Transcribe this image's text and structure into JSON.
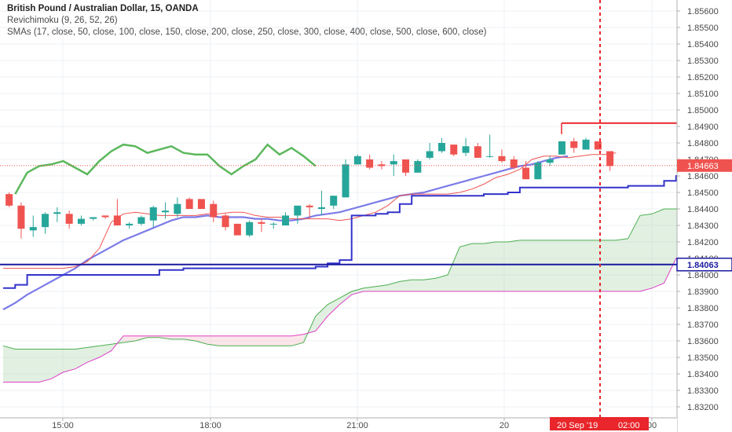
{
  "legend": {
    "title": "British Pound / Australian Dollar, 15, OANDA",
    "ichimoku": "Revichimoku (9, 26, 52, 26)",
    "smas": "SMAs (17, close, 50, close, 100, close, 150, close, 200, close, 250, close, 300, close, 400, close, 500, close, 600, close)"
  },
  "colors": {
    "up": "#26a69a",
    "down": "#ef5350",
    "grid": "#eef0f4",
    "cloud_bull": "#a8d5a8",
    "cloud_bear": "#f4b6c2",
    "lagging": "#5cb85c",
    "kijun": "#3333cc",
    "sma_fast": "#ef5350",
    "sma_slow": "#7b7be8",
    "price_line": "#1a1aa0",
    "marker": "#e8262b"
  },
  "price_badges": {
    "current": "1.84663",
    "line": "1.84063"
  },
  "time_badge": {
    "date": "20 Sep '19",
    "time": "02:00"
  },
  "chart_data": {
    "type": "candlestick",
    "symbol": "GBPAUD",
    "interval": "15",
    "y_ticks": [
      "1.85600",
      "1.85500",
      "1.85400",
      "1.85300",
      "1.85200",
      "1.85100",
      "1.85000",
      "1.84900",
      "1.84800",
      "1.84700",
      "1.84600",
      "1.84500",
      "1.84400",
      "1.84300",
      "1.84200",
      "1.84100",
      "1.84000",
      "1.83900",
      "1.83800",
      "1.83700",
      "1.83600",
      "1.83500",
      "1.83400",
      "1.83300",
      "1.83200"
    ],
    "x_ticks": [
      "15:00",
      "18:00",
      "21:00",
      "20",
      "00"
    ],
    "ylim": [
      1.8315,
      1.8565
    ],
    "horizontal_line": 1.84063,
    "target_level": 1.8492,
    "candles": [
      {
        "o": 1.8449,
        "h": 1.845,
        "l": 1.8441,
        "c": 1.8442
      },
      {
        "o": 1.8442,
        "h": 1.8444,
        "l": 1.8422,
        "c": 1.8428
      },
      {
        "o": 1.8427,
        "h": 1.8436,
        "l": 1.8423,
        "c": 1.8429
      },
      {
        "o": 1.8429,
        "h": 1.8438,
        "l": 1.8425,
        "c": 1.8437
      },
      {
        "o": 1.8437,
        "h": 1.8441,
        "l": 1.8432,
        "c": 1.8438
      },
      {
        "o": 1.8437,
        "h": 1.8439,
        "l": 1.8428,
        "c": 1.8431
      },
      {
        "o": 1.8431,
        "h": 1.8436,
        "l": 1.843,
        "c": 1.8434
      },
      {
        "o": 1.8434,
        "h": 1.8435,
        "l": 1.8433,
        "c": 1.8435
      },
      {
        "o": 1.8436,
        "h": 1.8436,
        "l": 1.8434,
        "c": 1.8435
      },
      {
        "o": 1.8436,
        "h": 1.8446,
        "l": 1.843,
        "c": 1.843
      },
      {
        "o": 1.843,
        "h": 1.8432,
        "l": 1.8428,
        "c": 1.8431
      },
      {
        "o": 1.8431,
        "h": 1.8436,
        "l": 1.843,
        "c": 1.8435
      },
      {
        "o": 1.8433,
        "h": 1.8442,
        "l": 1.8429,
        "c": 1.8441
      },
      {
        "o": 1.8438,
        "h": 1.8444,
        "l": 1.8434,
        "c": 1.8439
      },
      {
        "o": 1.8437,
        "h": 1.8447,
        "l": 1.8435,
        "c": 1.8443
      },
      {
        "o": 1.8446,
        "h": 1.8447,
        "l": 1.844,
        "c": 1.844
      },
      {
        "o": 1.8446,
        "h": 1.8446,
        "l": 1.844,
        "c": 1.844
      },
      {
        "o": 1.8443,
        "h": 1.8445,
        "l": 1.8432,
        "c": 1.8435
      },
      {
        "o": 1.8436,
        "h": 1.8437,
        "l": 1.8427,
        "c": 1.8429
      },
      {
        "o": 1.8431,
        "h": 1.8431,
        "l": 1.8424,
        "c": 1.8424
      },
      {
        "o": 1.8424,
        "h": 1.8433,
        "l": 1.8423,
        "c": 1.8432
      },
      {
        "o": 1.8432,
        "h": 1.8434,
        "l": 1.8426,
        "c": 1.8431
      },
      {
        "o": 1.8431,
        "h": 1.8432,
        "l": 1.8428,
        "c": 1.8431
      },
      {
        "o": 1.843,
        "h": 1.8438,
        "l": 1.843,
        "c": 1.8436
      },
      {
        "o": 1.8436,
        "h": 1.8442,
        "l": 1.8431,
        "c": 1.8442
      },
      {
        "o": 1.8442,
        "h": 1.8443,
        "l": 1.8434,
        "c": 1.8441
      },
      {
        "o": 1.844,
        "h": 1.8451,
        "l": 1.8436,
        "c": 1.8441
      },
      {
        "o": 1.8442,
        "h": 1.8448,
        "l": 1.844,
        "c": 1.8448
      },
      {
        "o": 1.8447,
        "h": 1.847,
        "l": 1.8447,
        "c": 1.8467
      },
      {
        "o": 1.8467,
        "h": 1.8473,
        "l": 1.8467,
        "c": 1.8472
      },
      {
        "o": 1.847,
        "h": 1.8473,
        "l": 1.8464,
        "c": 1.8465
      },
      {
        "o": 1.8467,
        "h": 1.8469,
        "l": 1.8464,
        "c": 1.8466
      },
      {
        "o": 1.8467,
        "h": 1.8473,
        "l": 1.846,
        "c": 1.8469
      },
      {
        "o": 1.847,
        "h": 1.847,
        "l": 1.846,
        "c": 1.8462
      },
      {
        "o": 1.8462,
        "h": 1.847,
        "l": 1.8462,
        "c": 1.8469
      },
      {
        "o": 1.8471,
        "h": 1.848,
        "l": 1.847,
        "c": 1.8475
      },
      {
        "o": 1.8475,
        "h": 1.8483,
        "l": 1.8474,
        "c": 1.848
      },
      {
        "o": 1.8479,
        "h": 1.8479,
        "l": 1.8472,
        "c": 1.8473
      },
      {
        "o": 1.8474,
        "h": 1.8483,
        "l": 1.8472,
        "c": 1.8478
      },
      {
        "o": 1.8478,
        "h": 1.848,
        "l": 1.8471,
        "c": 1.8471
      },
      {
        "o": 1.8472,
        "h": 1.8485,
        "l": 1.8471,
        "c": 1.8472
      },
      {
        "o": 1.8472,
        "h": 1.8476,
        "l": 1.8468,
        "c": 1.8469
      },
      {
        "o": 1.847,
        "h": 1.8472,
        "l": 1.8464,
        "c": 1.8465
      },
      {
        "o": 1.8465,
        "h": 1.8469,
        "l": 1.8458,
        "c": 1.8458
      },
      {
        "o": 1.8458,
        "h": 1.8469,
        "l": 1.8458,
        "c": 1.8468
      },
      {
        "o": 1.8468,
        "h": 1.8472,
        "l": 1.8466,
        "c": 1.847
      },
      {
        "o": 1.8473,
        "h": 1.8481,
        "l": 1.8473,
        "c": 1.8481
      },
      {
        "o": 1.8481,
        "h": 1.8483,
        "l": 1.8474,
        "c": 1.8477
      },
      {
        "o": 1.8476,
        "h": 1.8483,
        "l": 1.8476,
        "c": 1.8482
      },
      {
        "o": 1.8481,
        "h": 1.8481,
        "l": 1.8476,
        "c": 1.8476
      },
      {
        "o": 1.8475,
        "h": 1.8475,
        "l": 1.8463,
        "c": 1.8466
      }
    ],
    "lagging_span": [
      1.8449,
      1.8462,
      1.8466,
      1.8467,
      1.8469,
      1.8465,
      1.8461,
      1.8469,
      1.8475,
      1.8479,
      1.8478,
      1.8474,
      1.8476,
      1.8478,
      1.8474,
      1.8473,
      1.8473,
      1.8466,
      1.8461,
      1.8466,
      1.847,
      1.8479,
      1.8473,
      1.8477,
      1.8472,
      1.8466
    ],
    "kijun": [
      1.8392,
      1.8394,
      1.84,
      1.84,
      1.84,
      1.84,
      1.84,
      1.84,
      1.84,
      1.84,
      1.84,
      1.84,
      1.84,
      1.8403,
      1.8403,
      1.8404,
      1.8404,
      1.8404,
      1.8404,
      1.8404,
      1.8404,
      1.8404,
      1.8404,
      1.8404,
      1.8404,
      1.8404,
      1.8405,
      1.8407,
      1.8409,
      1.8436,
      1.8436,
      1.8437,
      1.8438,
      1.8443,
      1.8448,
      1.8448,
      1.8448,
      1.8448,
      1.8448,
      1.8448,
      1.8449,
      1.8449,
      1.845,
      1.8453,
      1.8453,
      1.8453,
      1.8453,
      1.8453,
      1.8453,
      1.8453,
      1.8453,
      1.8453,
      1.8454,
      1.8454,
      1.8454,
      1.8457,
      1.846,
      1.8461
    ],
    "sma_fast": [
      1.8404,
      1.8404,
      1.8404,
      1.8404,
      1.8404,
      1.8404,
      1.8405,
      1.8408,
      1.8416,
      1.8432,
      1.8437,
      1.8438,
      1.8437,
      1.8436,
      1.8436,
      1.8436,
      1.8436,
      1.8437,
      1.8437,
      1.8438,
      1.8438,
      1.8436,
      1.8435,
      1.8435,
      1.8434,
      1.8434,
      1.8434,
      1.8434,
      1.8433,
      1.8434,
      1.8436,
      1.8438,
      1.8442,
      1.8448,
      1.8449,
      1.8449,
      1.8449,
      1.8449,
      1.845,
      1.8452,
      1.8455,
      1.8459,
      1.8461,
      1.8464,
      1.847,
      1.8472,
      1.8472,
      1.8471,
      1.8472,
      1.8473,
      1.8473,
      1.8474
    ],
    "sma_slow": [
      1.8379,
      1.8383,
      1.8388,
      1.8392,
      1.8396,
      1.84,
      1.8404,
      1.8409,
      1.8413,
      1.8417,
      1.8421,
      1.8424,
      1.8427,
      1.843,
      1.8433,
      1.8435,
      1.8435,
      1.8436,
      1.8435,
      1.8435,
      1.8435,
      1.8434,
      1.8434,
      1.8433,
      1.8433,
      1.8434,
      1.8436,
      1.8437,
      1.8438,
      1.844,
      1.8442,
      1.8444,
      1.8446,
      1.8448,
      1.8449,
      1.845,
      1.8452,
      1.8454,
      1.8456,
      1.8458,
      1.846,
      1.8462,
      1.8464,
      1.8466,
      1.8467,
      1.8469,
      1.8471,
      1.8472
    ],
    "senkou_a": [
      1.8357,
      1.8355,
      1.8355,
      1.8355,
      1.8355,
      1.8355,
      1.8355,
      1.8356,
      1.8357,
      1.8358,
      1.8359,
      1.836,
      1.8362,
      1.8362,
      1.8361,
      1.8361,
      1.836,
      1.8358,
      1.8357,
      1.8357,
      1.8357,
      1.8357,
      1.8357,
      1.8357,
      1.8357,
      1.8359,
      1.8375,
      1.8382,
      1.8386,
      1.839,
      1.8392,
      1.8393,
      1.8394,
      1.8396,
      1.8397,
      1.8397,
      1.8398,
      1.84,
      1.8417,
      1.8419,
      1.8419,
      1.842,
      1.842,
      1.8421,
      1.8421,
      1.8421,
      1.8421,
      1.8421,
      1.8421,
      1.8421,
      1.8421,
      1.8421,
      1.8422,
      1.8436,
      1.8437,
      1.844,
      1.844,
      1.8446,
      1.8448,
      1.8448,
      1.8449,
      1.8449
    ],
    "senkou_b": [
      1.8335,
      1.8335,
      1.8335,
      1.8335,
      1.8337,
      1.8341,
      1.8343,
      1.8347,
      1.835,
      1.8354,
      1.8363,
      1.8363,
      1.8363,
      1.8363,
      1.8363,
      1.8363,
      1.8363,
      1.8363,
      1.8363,
      1.8363,
      1.8363,
      1.8363,
      1.8363,
      1.8363,
      1.8363,
      1.8364,
      1.8366,
      1.8375,
      1.8382,
      1.8388,
      1.839,
      1.839,
      1.839,
      1.839,
      1.839,
      1.839,
      1.839,
      1.839,
      1.839,
      1.839,
      1.839,
      1.839,
      1.839,
      1.839,
      1.839,
      1.839,
      1.839,
      1.839,
      1.839,
      1.839,
      1.839,
      1.839,
      1.839,
      1.839,
      1.8392,
      1.8395,
      1.841,
      1.841,
      1.841,
      1.841,
      1.841,
      1.841
    ]
  }
}
